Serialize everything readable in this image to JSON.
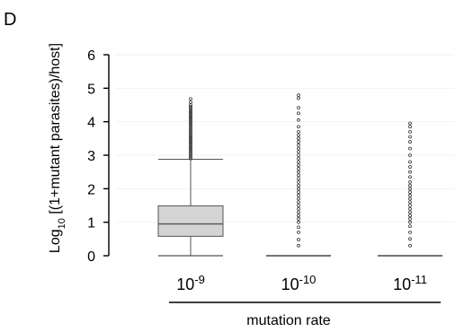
{
  "chart_data": {
    "type": "box",
    "panel_label": "D",
    "ylabel_prefix": "Log",
    "ylabel_sub": "10",
    "ylabel_suffix": " [(1+mutant parasites)/host]",
    "xlabel": "mutation rate",
    "ylim": [
      0,
      6
    ],
    "yticks": [
      "0",
      "1",
      "2",
      "3",
      "4",
      "5",
      "6"
    ],
    "grid": true,
    "categories": [
      {
        "base": "10",
        "exp": "-9"
      },
      {
        "base": "10",
        "exp": "-10"
      },
      {
        "base": "10",
        "exp": "-11"
      }
    ],
    "boxes": [
      {
        "min": 0,
        "q1": 0.58,
        "median": 0.95,
        "q3": 1.49,
        "whisker_high": 2.88,
        "outliers": [
          2.9,
          2.95,
          3.0,
          3.05,
          3.1,
          3.15,
          3.2,
          3.25,
          3.3,
          3.35,
          3.4,
          3.45,
          3.5,
          3.55,
          3.6,
          3.65,
          3.7,
          3.75,
          3.8,
          3.85,
          3.9,
          3.95,
          4.0,
          4.05,
          4.1,
          4.15,
          4.2,
          4.25,
          4.3,
          4.35,
          4.4,
          4.45,
          4.5,
          4.58,
          4.68
        ]
      },
      {
        "min": 0,
        "q1": 0,
        "median": 0,
        "q3": 0,
        "whisker_high": 0,
        "outliers": [
          0.3,
          0.48,
          0.7,
          0.85,
          1.0,
          1.1,
          1.2,
          1.3,
          1.4,
          1.5,
          1.6,
          1.7,
          1.8,
          1.9,
          2.0,
          2.1,
          2.2,
          2.3,
          2.4,
          2.5,
          2.6,
          2.7,
          2.8,
          2.9,
          3.0,
          3.1,
          3.2,
          3.3,
          3.4,
          3.5,
          3.6,
          3.7,
          3.85,
          4.05,
          4.25,
          4.42,
          4.7,
          4.79
        ]
      },
      {
        "min": 0,
        "q1": 0,
        "median": 0,
        "q3": 0,
        "whisker_high": 0,
        "outliers": [
          0.3,
          0.5,
          0.7,
          0.88,
          1.0,
          1.1,
          1.2,
          1.3,
          1.4,
          1.5,
          1.6,
          1.7,
          1.8,
          1.9,
          2.0,
          2.1,
          2.2,
          2.35,
          2.5,
          2.65,
          2.8,
          3.0,
          3.2,
          3.4,
          3.55,
          3.7,
          3.85,
          3.95
        ]
      }
    ],
    "colors": {
      "box_fill": "#d4d4d4",
      "box_stroke": "#555555",
      "median": "#555555",
      "grid": "#f2f2f2",
      "outlier": "#333333"
    }
  }
}
